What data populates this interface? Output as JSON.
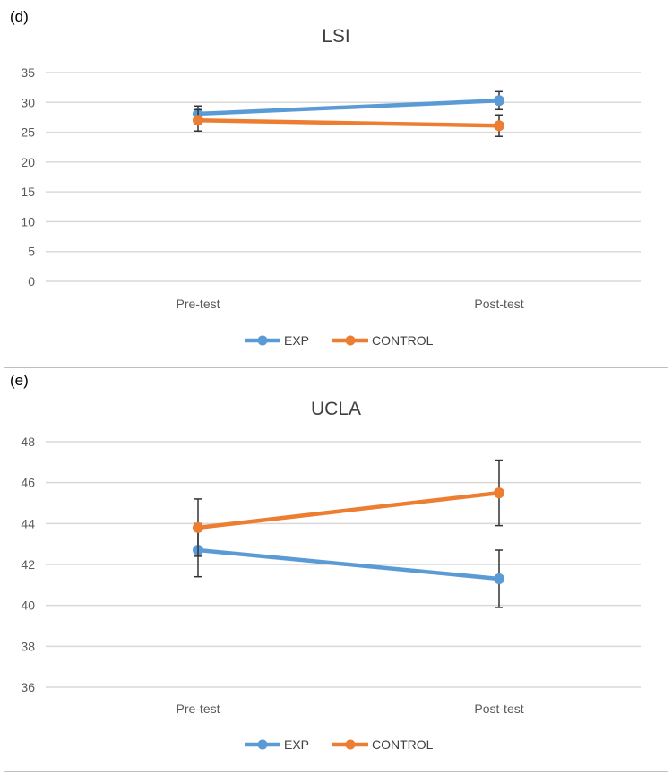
{
  "chart_data": [
    {
      "type": "line",
      "panel_label": "(d)",
      "title": "LSI",
      "categories": [
        "Pre-test",
        "Post-test"
      ],
      "ylim": [
        0,
        35
      ],
      "yticks": [
        0,
        5,
        10,
        15,
        20,
        25,
        30,
        35
      ],
      "grid": true,
      "legend": "bottom",
      "series": [
        {
          "name": "EXP",
          "color": "#5b9bd5",
          "values": [
            28.1,
            30.3
          ],
          "errors": [
            1.3,
            1.5
          ]
        },
        {
          "name": "CONTROL",
          "color": "#ed7d31",
          "values": [
            27.0,
            26.1
          ],
          "errors": [
            1.8,
            1.8
          ]
        }
      ]
    },
    {
      "type": "line",
      "panel_label": "(e)",
      "title": "UCLA",
      "categories": [
        "Pre-test",
        "Post-test"
      ],
      "ylim": [
        36,
        48
      ],
      "yticks": [
        36,
        38,
        40,
        42,
        44,
        46,
        48
      ],
      "grid": true,
      "legend": "bottom",
      "series": [
        {
          "name": "EXP",
          "color": "#5b9bd5",
          "values": [
            42.7,
            41.3
          ],
          "errors": [
            1.3,
            1.4
          ]
        },
        {
          "name": "CONTROL",
          "color": "#ed7d31",
          "values": [
            43.8,
            45.5
          ],
          "errors": [
            1.4,
            1.6
          ]
        }
      ]
    }
  ]
}
